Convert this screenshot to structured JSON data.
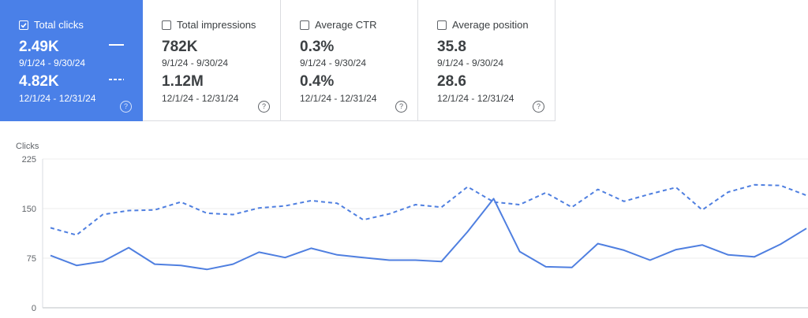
{
  "metrics": [
    {
      "label": "Total clicks",
      "checked": true,
      "value1": "2.49K",
      "range1": "9/1/24 - 9/30/24",
      "value2": "4.82K",
      "range2": "12/1/24 - 12/31/24",
      "help": "?"
    },
    {
      "label": "Total impressions",
      "checked": false,
      "value1": "782K",
      "range1": "9/1/24 - 9/30/24",
      "value2": "1.12M",
      "range2": "12/1/24 - 12/31/24",
      "help": "?"
    },
    {
      "label": "Average CTR",
      "checked": false,
      "value1": "0.3%",
      "range1": "9/1/24 - 9/30/24",
      "value2": "0.4%",
      "range2": "12/1/24 - 12/31/24",
      "help": "?"
    },
    {
      "label": "Average position",
      "checked": false,
      "value1": "35.8",
      "range1": "9/1/24 - 9/30/24",
      "value2": "28.6",
      "range2": "12/1/24 - 12/31/24",
      "help": "?"
    }
  ],
  "colors": {
    "accent": "#4a80e8",
    "line": "#4f7fe0"
  },
  "icons": {
    "checkbox": "checkbox-icon",
    "help": "help-circle-icon"
  },
  "chart_data": {
    "type": "line",
    "ylabel": "Clicks",
    "ylim": [
      0,
      225
    ],
    "yticks": [
      "225",
      "150",
      "75",
      "0"
    ],
    "grid": true,
    "series": [
      {
        "style": "solid",
        "values": [
          79,
          64,
          70,
          91,
          66,
          64,
          58,
          66,
          84,
          76,
          90,
          80,
          76,
          72,
          72,
          70,
          115,
          165,
          85,
          62,
          61,
          97,
          87,
          72,
          88,
          95,
          80,
          77,
          96,
          120
        ]
      },
      {
        "style": "dashed",
        "values": [
          121,
          110,
          141,
          147,
          148,
          160,
          143,
          141,
          151,
          154,
          162,
          158,
          133,
          142,
          156,
          152,
          183,
          160,
          156,
          174,
          152,
          179,
          161,
          172,
          182,
          148,
          175,
          186,
          185,
          170
        ]
      }
    ]
  }
}
